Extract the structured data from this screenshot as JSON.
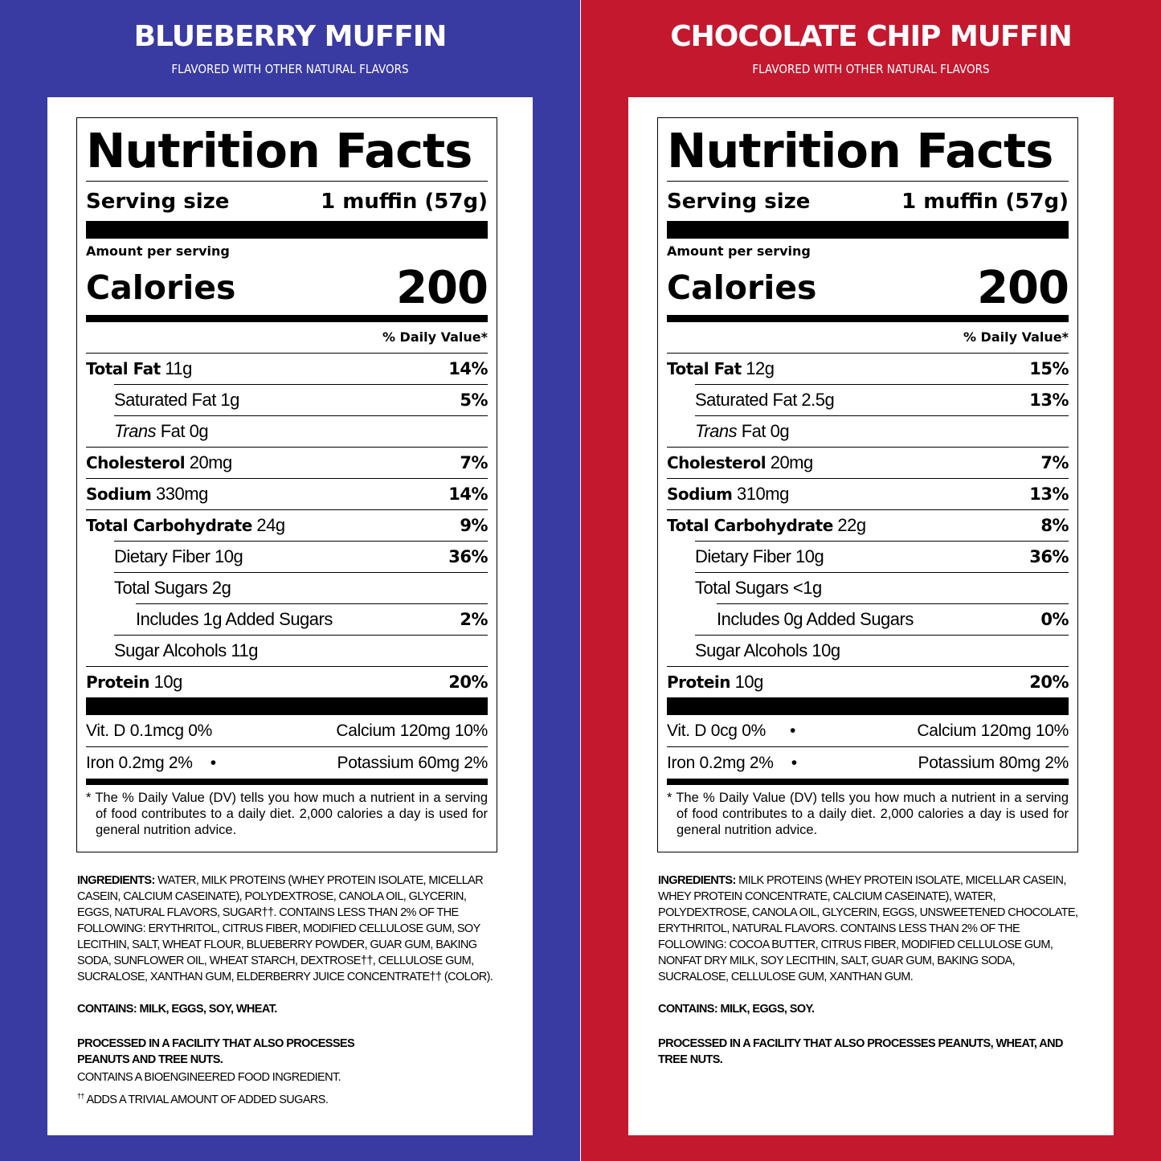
{
  "panels": [
    {
      "color": "#3a3aa3",
      "flavor": "BLUEBERRY MUFFIN",
      "subtitle": "FLAVORED WITH OTHER NATURAL FLAVORS",
      "nf_title": "Nutrition Facts",
      "serving_label": "Serving size",
      "serving_value": "1 muffin (57g)",
      "amount_per_serving": "Amount per serving",
      "calories_label": "Calories",
      "calories_value": "200",
      "dv_header": "% Daily Value*",
      "nutrients": {
        "total_fat": {
          "label": "Total Fat",
          "amount": "11g",
          "dv": "14%"
        },
        "sat_fat": {
          "label": "Saturated Fat 1g",
          "dv": "5%"
        },
        "trans_fat": {
          "label_italic": "Trans",
          "label": "Fat 0g"
        },
        "cholesterol": {
          "label": "Cholesterol",
          "amount": "20mg",
          "dv": "7%"
        },
        "sodium": {
          "label": "Sodium",
          "amount": "330mg",
          "dv": "14%"
        },
        "carb": {
          "label": "Total Carbohydrate",
          "amount": "24g",
          "dv": "9%"
        },
        "fiber": {
          "label": "Dietary Fiber 10g",
          "dv": "36%"
        },
        "sugars": {
          "label": "Total Sugars 2g"
        },
        "added_sugars": {
          "label": "Includes 1g Added Sugars",
          "dv": "2%"
        },
        "sugar_alcohols": {
          "label": "Sugar Alcohols 11g"
        },
        "protein": {
          "label": "Protein",
          "amount": "10g",
          "dv": "20%"
        }
      },
      "vitamins": {
        "vit_d": "Vit. D 0.1mcg 0%",
        "vit_d_sep": "•",
        "calcium": "Calcium 120mg 10%",
        "iron": "Iron 0.2mg 2%",
        "iron_sep": "•",
        "potassium": "Potassium 60mg 2%"
      },
      "footnote": "* The % Daily Value (DV) tells you how much a nutrient in a serving of food contributes to a daily diet. 2,000 calories a day is used for general nutrition advice.",
      "ingredients_label": "INGREDIENTS:",
      "ingredients": "WATER, MILK PROTEINS (WHEY PROTEIN ISOLATE, MICELLAR CASEIN, CALCIUM CASEINATE), POLYDEXTROSE, CANOLA OIL, GLYCERIN, EGGS, NATURAL FLAVORS, SUGAR††. CONTAINS LESS THAN 2% OF THE FOLLOWING: ERYTHRITOL, CITRUS FIBER, MODIFIED CELLULOSE GUM, SOY LECITHIN, SALT, WHEAT FLOUR, BLUEBERRY POWDER, GUAR GUM, BAKING SODA, SUNFLOWER OIL, WHEAT STARCH, DEXTROSE††, CELLULOSE GUM, SUCRALOSE, XANTHAN GUM, ELDERBERRY JUICE CONCENTRATE†† (COLOR).",
      "contains": "CONTAINS: MILK, EGGS, SOY, WHEAT.",
      "facility": "PROCESSED IN A FACILITY THAT ALSO PROCESSES PEANUTS AND TREE NUTS.",
      "bioengineered": "CONTAINS A BIOENGINEERED FOOD INGREDIENT.",
      "trivial_mark": "††",
      "trivial": "ADDS A TRIVIAL AMOUNT OF ADDED SUGARS."
    },
    {
      "color": "#c4182f",
      "flavor": "CHOCOLATE CHIP MUFFIN",
      "subtitle": "FLAVORED WITH OTHER NATURAL FLAVORS",
      "nf_title": "Nutrition Facts",
      "serving_label": "Serving size",
      "serving_value": "1 muffin (57g)",
      "amount_per_serving": "Amount per serving",
      "calories_label": "Calories",
      "calories_value": "200",
      "dv_header": "% Daily Value*",
      "nutrients": {
        "total_fat": {
          "label": "Total Fat",
          "amount": "12g",
          "dv": "15%"
        },
        "sat_fat": {
          "label": "Saturated Fat 2.5g",
          "dv": "13%"
        },
        "trans_fat": {
          "label_italic": "Trans",
          "label": "Fat 0g"
        },
        "cholesterol": {
          "label": "Cholesterol",
          "amount": "20mg",
          "dv": "7%"
        },
        "sodium": {
          "label": "Sodium",
          "amount": "310mg",
          "dv": "13%"
        },
        "carb": {
          "label": "Total Carbohydrate",
          "amount": "22g",
          "dv": "8%"
        },
        "fiber": {
          "label": "Dietary Fiber 10g",
          "dv": "36%"
        },
        "sugars": {
          "label": "Total Sugars <1g"
        },
        "added_sugars": {
          "label": "Includes 0g Added Sugars",
          "dv": "0%"
        },
        "sugar_alcohols": {
          "label": "Sugar Alcohols 10g"
        },
        "protein": {
          "label": "Protein",
          "amount": "10g",
          "dv": "20%"
        }
      },
      "vitamins": {
        "vit_d": "Vit. D 0cg 0%",
        "vit_d_sep": "•",
        "calcium": "Calcium 120mg 10%",
        "iron": "Iron 0.2mg 2%",
        "iron_sep": "•",
        "potassium": "Potassium 80mg 2%"
      },
      "footnote": "* The % Daily Value (DV) tells you how much a nutrient in a serving of food contributes to a daily diet. 2,000 calories a day is used for general nutrition advice.",
      "ingredients_label": "INGREDIENTS:",
      "ingredients": "MILK PROTEINS (WHEY PROTEIN ISOLATE, MICELLAR CASEIN, WHEY PROTEIN CONCENTRATE, CALCIUM CASEINATE), WATER, POLYDEXTROSE, CANOLA OIL, GLYCERIN, EGGS, UNSWEETENED CHOCOLATE, ERYTHRITOL, NATURAL FLAVORS. CONTAINS LESS THAN 2% OF THE FOLLOWING: COCOA BUTTER, CITRUS FIBER, MODIFIED CELLULOSE GUM, NONFAT DRY MILK, SOY LECITHIN, SALT, GUAR GUM, BAKING SODA, SUCRALOSE, CELLULOSE GUM, XANTHAN GUM.",
      "contains": "CONTAINS: MILK, EGGS, SOY.",
      "facility": "PROCESSED IN A FACILITY THAT ALSO PROCESSES PEANUTS, WHEAT, AND TREE NUTS."
    }
  ]
}
